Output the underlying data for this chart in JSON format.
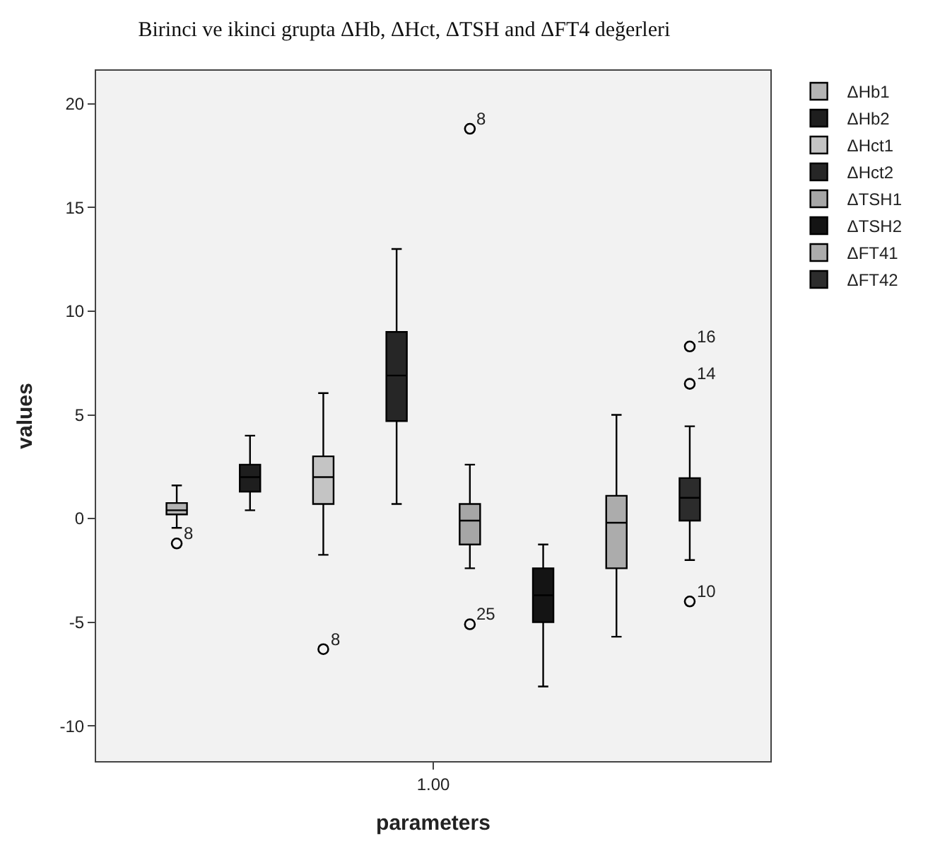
{
  "chart_data": {
    "type": "box",
    "title": "Birinci ve ikinci grupta ΔHb, ΔHct, ΔTSH and ΔFT4 değerleri",
    "xlabel": "parameters",
    "ylabel": "values",
    "categories": [
      "1.00"
    ],
    "series": [
      {
        "name": "ΔHb1",
        "color": "#b4b4b4",
        "boxes": [
          {
            "low": -0.45,
            "q1": 0.2,
            "median": 0.4,
            "q3": 0.75,
            "high": 1.6,
            "outliers": [
              -1.2
            ]
          }
        ]
      },
      {
        "name": "ΔHb2",
        "color": "#1e1e1e",
        "boxes": [
          {
            "low": 0.4,
            "q1": 1.3,
            "median": 2.0,
            "q3": 2.6,
            "high": 4.0
          }
        ]
      },
      {
        "name": "ΔHct1",
        "color": "#c4c4c4",
        "boxes": [
          {
            "low": -1.75,
            "q1": 0.7,
            "median": 2.0,
            "q3": 3.0,
            "high": 6.05,
            "outliers": [
              -6.3
            ]
          }
        ]
      },
      {
        "name": "ΔHct2",
        "color": "#262626",
        "boxes": [
          {
            "low": 0.7,
            "q1": 4.7,
            "median": 6.9,
            "q3": 9.0,
            "high": 13.0
          }
        ]
      },
      {
        "name": "ΔTSH1",
        "color": "#a6a6a6",
        "boxes": [
          {
            "low": -2.4,
            "q1": -1.25,
            "median": -0.1,
            "q3": 0.7,
            "high": 2.6,
            "outliers": [
              -5.1,
              18.8
            ]
          }
        ]
      },
      {
        "name": "ΔTSH2",
        "color": "#141414",
        "boxes": [
          {
            "low": -8.1,
            "q1": -5.0,
            "median": -3.7,
            "q3": -2.4,
            "high": -1.25
          }
        ]
      },
      {
        "name": "ΔFT41",
        "color": "#acacac",
        "boxes": [
          {
            "low": -5.7,
            "q1": -2.4,
            "median": -0.2,
            "q3": 1.1,
            "high": 5.0
          }
        ]
      },
      {
        "name": "ΔFT42",
        "color": "#2c2c2c",
        "boxes": [
          {
            "low": -2.0,
            "q1": -0.1,
            "median": 1.0,
            "q3": 1.95,
            "high": 4.45,
            "outliers": [
              -4.0,
              6.5,
              8.3
            ]
          }
        ]
      }
    ],
    "annotations": [
      "8",
      "8",
      "25",
      "8",
      "10",
      "14",
      "16"
    ],
    "ylim": [
      -11.7,
      21.6
    ],
    "yticks": [
      -10,
      -5,
      0,
      5,
      10,
      15,
      20
    ],
    "grid": false,
    "legend": "top right"
  }
}
